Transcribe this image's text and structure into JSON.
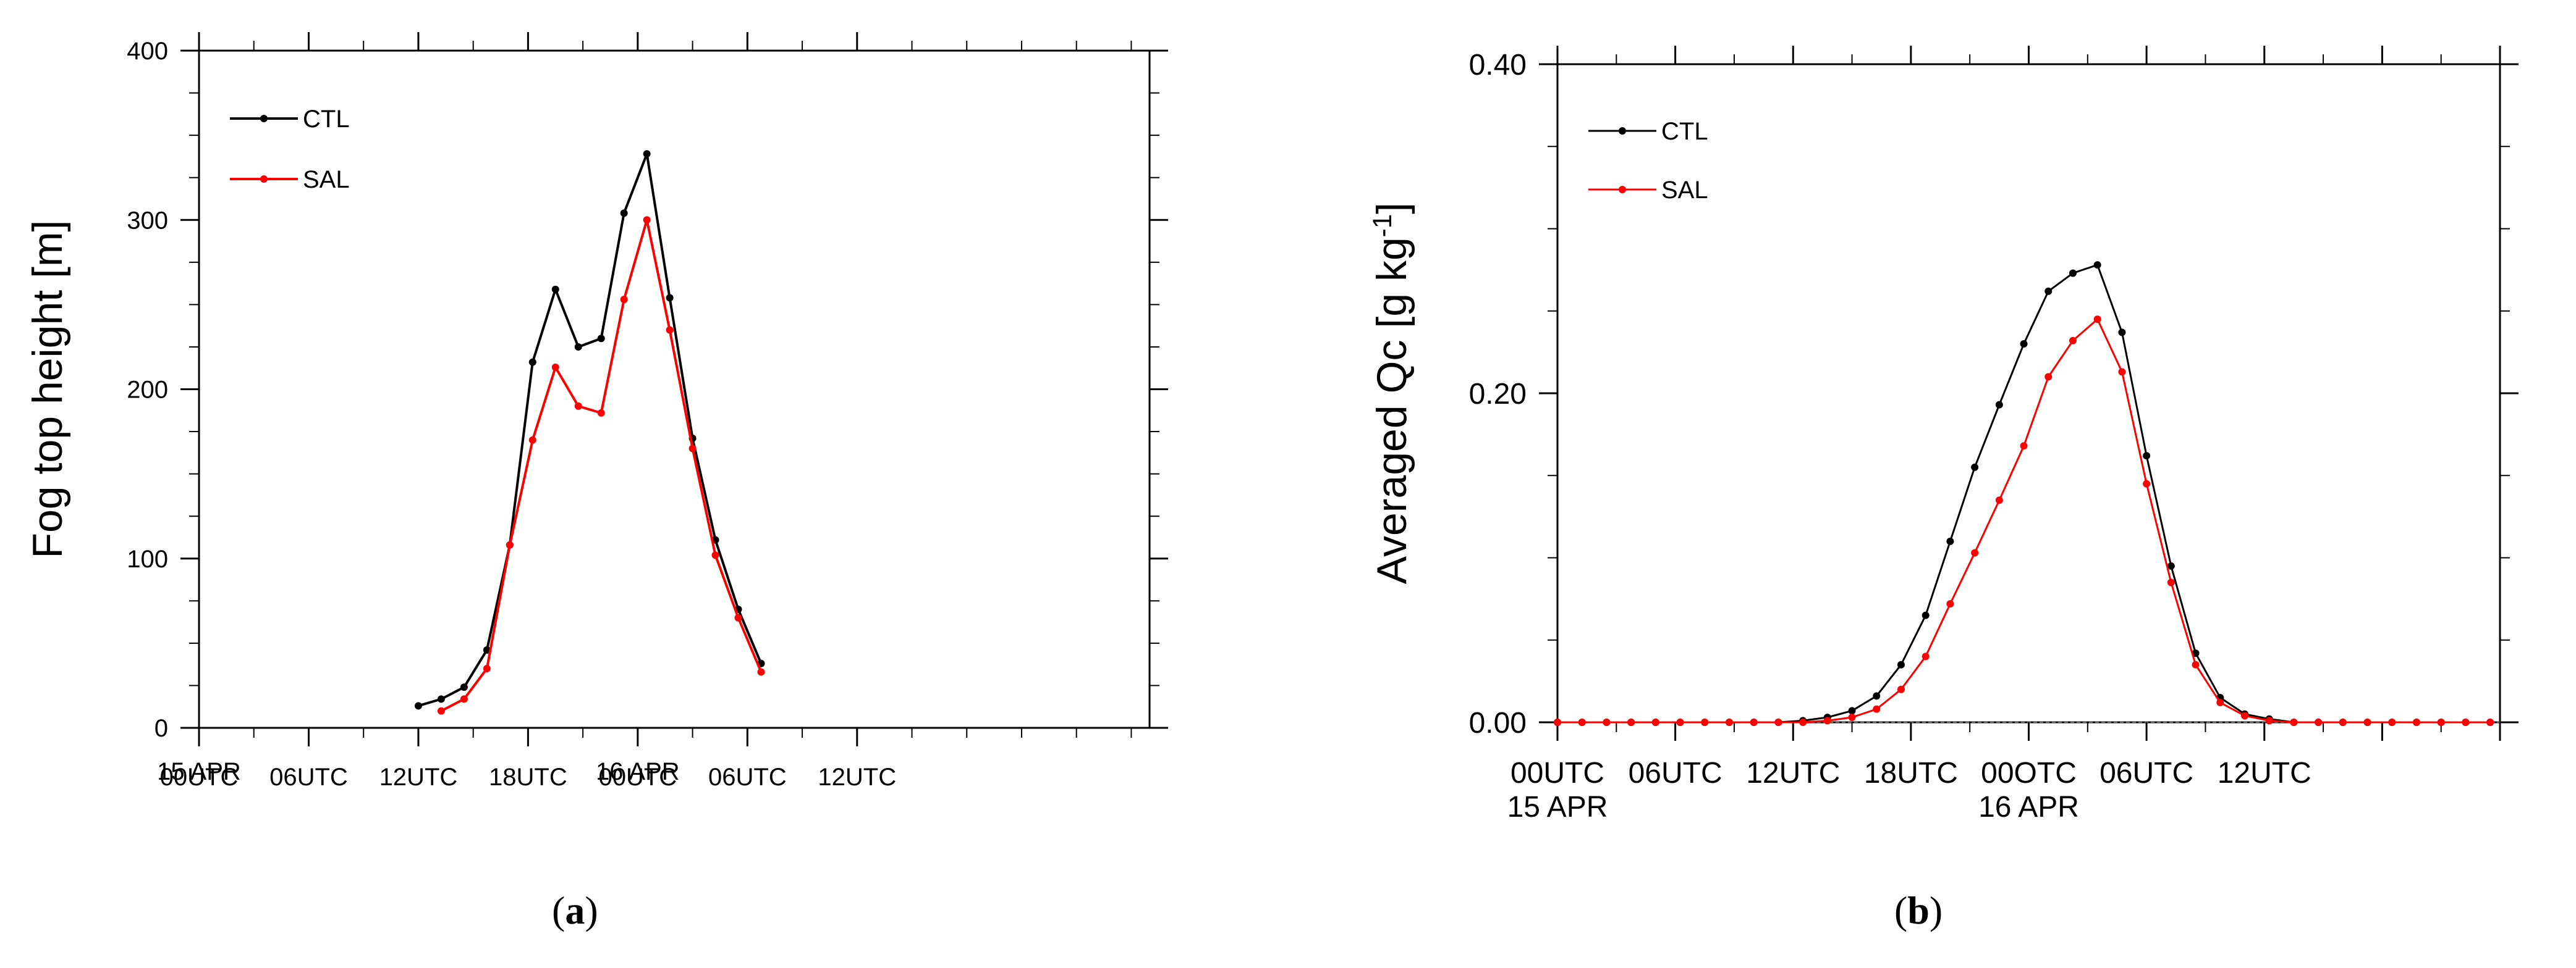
{
  "colors": {
    "CTL": "#000000",
    "SAL": "#ff0000",
    "axis": "#000000",
    "zero_line": "#666666"
  },
  "chart_data": [
    {
      "panel_label": "a",
      "type": "line",
      "title": "",
      "xlabel": "",
      "ylabel": "Fog top height [m]",
      "x_unit": "hours from 00UTC 15 APR",
      "xlim": [
        0,
        52
      ],
      "ylim": [
        0,
        400
      ],
      "yticks": [
        0,
        100,
        200,
        300,
        400
      ],
      "ytick_labels": [
        "0",
        "100",
        "200",
        "300",
        "400"
      ],
      "xticks": [
        0,
        6,
        12,
        18,
        24,
        30,
        36
      ],
      "xtick_labels": [
        "00UTC",
        "06UTC",
        "12UTC",
        "18UTC",
        "00UTC",
        "06UTC",
        "12UTC"
      ],
      "date_labels": [
        {
          "x": 0,
          "text": "15 APR"
        },
        {
          "x": 24,
          "text": "16 APR"
        }
      ],
      "grid": false,
      "legend_position": "top-left",
      "series": [
        {
          "name": "CTL",
          "color_key": "CTL",
          "x": [
            12,
            13.25,
            14.5,
            15.75,
            17,
            18.25,
            19.5,
            20.75,
            22,
            23.25,
            24.5,
            25.75,
            27,
            28.25,
            29.5,
            30.75
          ],
          "y": [
            13,
            17,
            24,
            46,
            108,
            216,
            259,
            225,
            230,
            304,
            339,
            254,
            171,
            111,
            70,
            38
          ]
        },
        {
          "name": "SAL",
          "color_key": "SAL",
          "x": [
            13.25,
            14.5,
            15.75,
            17,
            18.25,
            19.5,
            20.75,
            22,
            23.25,
            24.5,
            25.75,
            27,
            28.25,
            29.5,
            30.75
          ],
          "y": [
            10,
            17,
            35,
            108,
            170,
            213,
            190,
            186,
            253,
            300,
            235,
            165,
            102,
            65,
            33
          ]
        }
      ]
    },
    {
      "panel_label": "b",
      "type": "line",
      "title": "",
      "xlabel": "",
      "ylabel": "Averaged Qc [g kg",
      "ylabel_sup": "-1",
      "ylabel_end": "]",
      "x_unit": "hours from 00UTC 15 APR",
      "xlim": [
        0,
        48
      ],
      "ylim": [
        0,
        0.4
      ],
      "yticks": [
        0,
        0.2,
        0.4
      ],
      "ytick_labels": [
        "0.00",
        "0.20",
        "0.40"
      ],
      "xticks": [
        0,
        6,
        12,
        18,
        24,
        30,
        36,
        42,
        48
      ],
      "xtick_labels": [
        "00UTC",
        "06UTC",
        "12UTC",
        "18UTC",
        "00OTC",
        "06UTC",
        "12UTC"
      ],
      "xtick_label_positions": [
        0,
        12,
        24,
        36,
        48,
        60,
        72
      ],
      "date_labels": [
        {
          "x": 0,
          "text": "15 APR"
        },
        {
          "x": 24,
          "text": "16 APR"
        }
      ],
      "grid": false,
      "legend_position": "top-left",
      "series": [
        {
          "name": "CTL",
          "color_key": "CTL",
          "x": [
            0,
            1.25,
            2.5,
            3.75,
            5,
            6.25,
            7.5,
            8.75,
            10,
            11.25,
            12.5,
            13.75,
            15,
            16.25,
            17.5,
            18.75,
            20,
            21.25,
            22.5,
            23.75,
            25,
            26.25,
            27.5,
            28.75,
            30,
            31.25,
            32.5,
            33.75,
            35,
            36.25,
            37.5,
            38.75,
            40,
            41.25,
            42.5,
            43.75,
            45,
            46.25,
            47.5
          ],
          "y": [
            0,
            0,
            0,
            0,
            0,
            0,
            0,
            0,
            0,
            0,
            0.001,
            0.003,
            0.007,
            0.016,
            0.035,
            0.065,
            0.11,
            0.155,
            0.193,
            0.23,
            0.262,
            0.273,
            0.278,
            0.237,
            0.162,
            0.095,
            0.042,
            0.015,
            0.005,
            0.002,
            0,
            0,
            0,
            0,
            0,
            0,
            0,
            0,
            0
          ]
        },
        {
          "name": "SAL",
          "color_key": "SAL",
          "x": [
            0,
            1.25,
            2.5,
            3.75,
            5,
            6.25,
            7.5,
            8.75,
            10,
            11.25,
            12.5,
            13.75,
            15,
            16.25,
            17.5,
            18.75,
            20,
            21.25,
            22.5,
            23.75,
            25,
            26.25,
            27.5,
            28.75,
            30,
            31.25,
            32.5,
            33.75,
            35,
            36.25,
            37.5,
            38.75,
            40,
            41.25,
            42.5,
            43.75,
            45,
            46.25,
            47.5
          ],
          "y": [
            0,
            0,
            0,
            0,
            0,
            0,
            0,
            0,
            0,
            0,
            0,
            0.001,
            0.003,
            0.008,
            0.02,
            0.04,
            0.072,
            0.103,
            0.135,
            0.168,
            0.21,
            0.232,
            0.245,
            0.213,
            0.145,
            0.085,
            0.035,
            0.012,
            0.004,
            0.001,
            0,
            0,
            0,
            0,
            0,
            0,
            0,
            0,
            0
          ]
        }
      ]
    }
  ]
}
